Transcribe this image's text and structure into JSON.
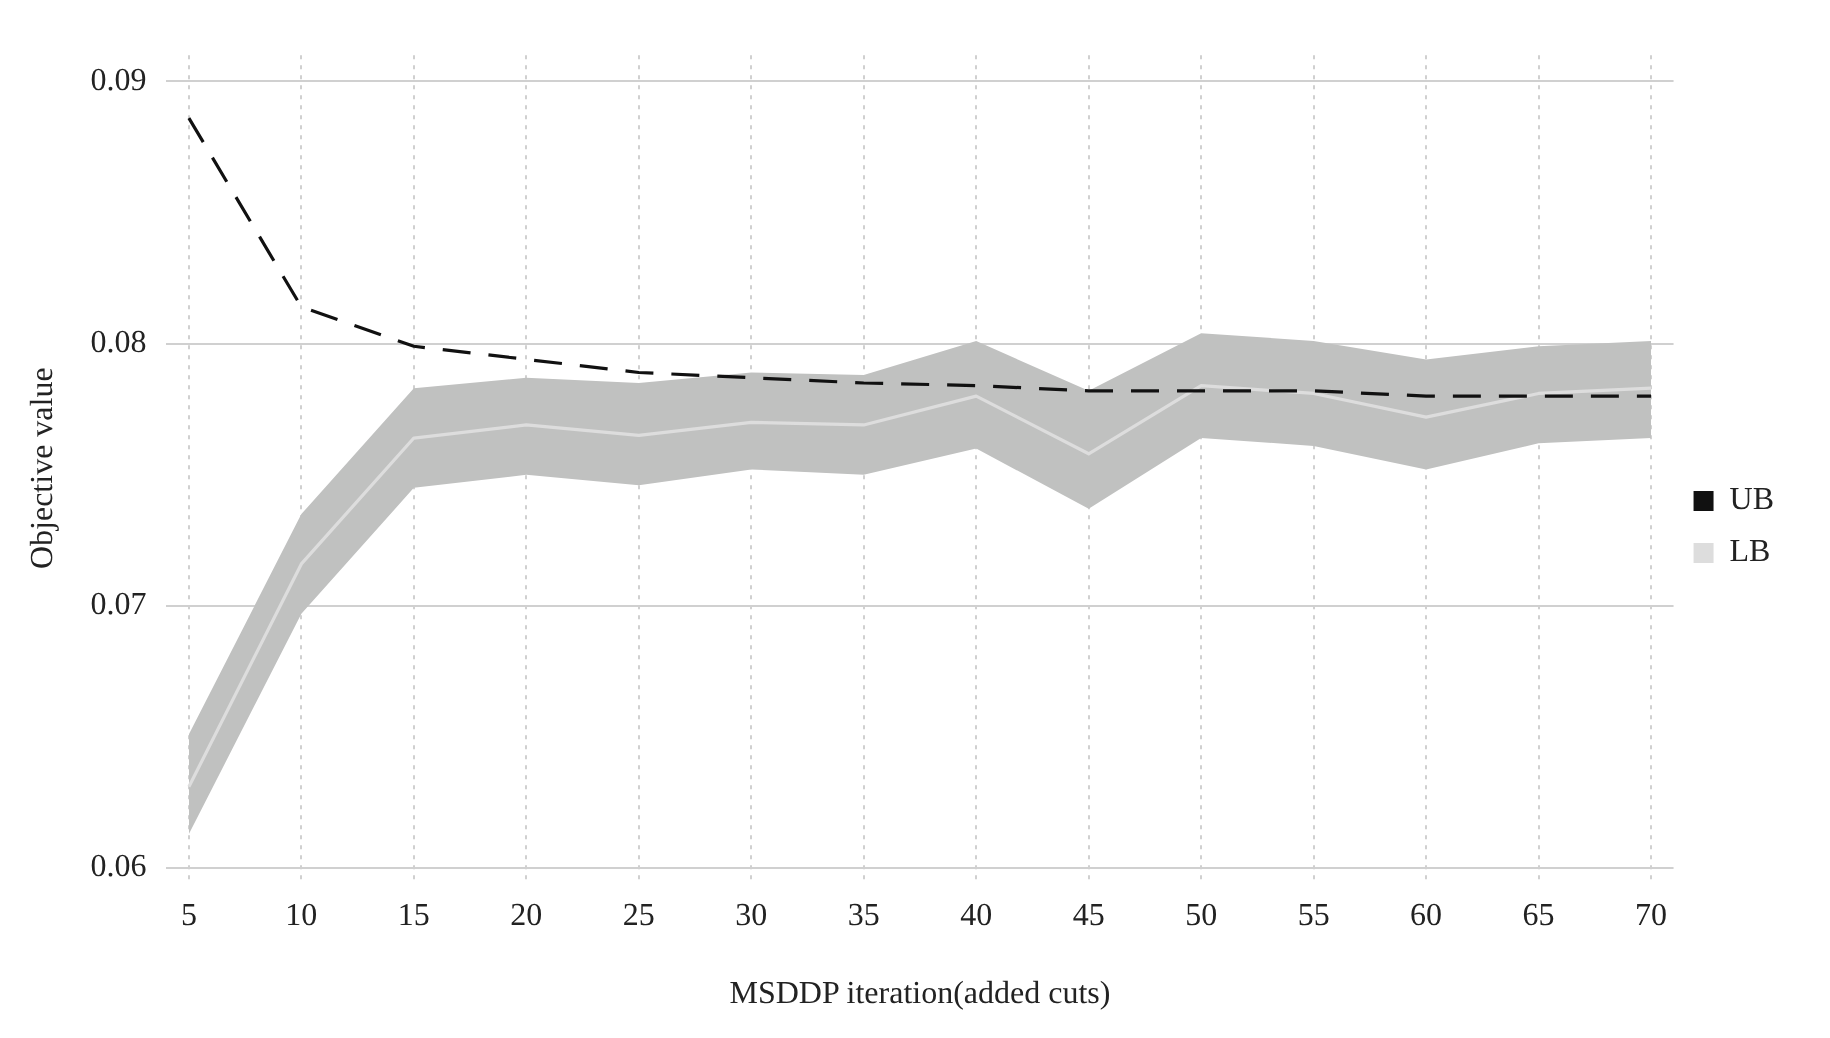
{
  "chart_data": {
    "type": "line",
    "xlabel": "MSDDP iteration(added cuts)",
    "ylabel": "Objective value",
    "x": [
      5,
      10,
      15,
      20,
      25,
      30,
      35,
      40,
      45,
      50,
      55,
      60,
      65,
      70
    ],
    "series": [
      {
        "name": "UB",
        "color": "#111111",
        "line_style": "dashed",
        "values": [
          0.0886,
          0.0814,
          0.0799,
          0.0794,
          0.0789,
          0.0787,
          0.0785,
          0.0784,
          0.0782,
          0.0782,
          0.0782,
          0.078,
          0.078,
          0.078
        ]
      },
      {
        "name": "LB",
        "color": "#dddddd",
        "line_style": "solid",
        "values": [
          0.0631,
          0.0716,
          0.0764,
          0.0769,
          0.0765,
          0.077,
          0.0769,
          0.078,
          0.0758,
          0.0784,
          0.0781,
          0.0772,
          0.0781,
          0.0783
        ],
        "lower": [
          0.0613,
          0.0697,
          0.0745,
          0.075,
          0.0746,
          0.0752,
          0.075,
          0.076,
          0.0737,
          0.0764,
          0.0761,
          0.0752,
          0.0762,
          0.0764
        ],
        "upper": [
          0.0651,
          0.0735,
          0.0783,
          0.0787,
          0.0785,
          0.0789,
          0.0788,
          0.0801,
          0.0782,
          0.0804,
          0.0801,
          0.0794,
          0.0799,
          0.0801
        ]
      }
    ],
    "xlim": [
      4,
      71
    ],
    "xticks": [
      5,
      10,
      15,
      20,
      25,
      30,
      35,
      40,
      45,
      50,
      55,
      60,
      65,
      70
    ],
    "ylim": [
      0.0595,
      0.091
    ],
    "yticks": [
      {
        "value": 0.06,
        "label": "0.06"
      },
      {
        "value": 0.07,
        "label": "0.07"
      },
      {
        "value": 0.08,
        "label": "0.08"
      },
      {
        "value": 0.09,
        "label": "0.09"
      }
    ],
    "grid": true,
    "legend": "right",
    "marker": "none"
  }
}
